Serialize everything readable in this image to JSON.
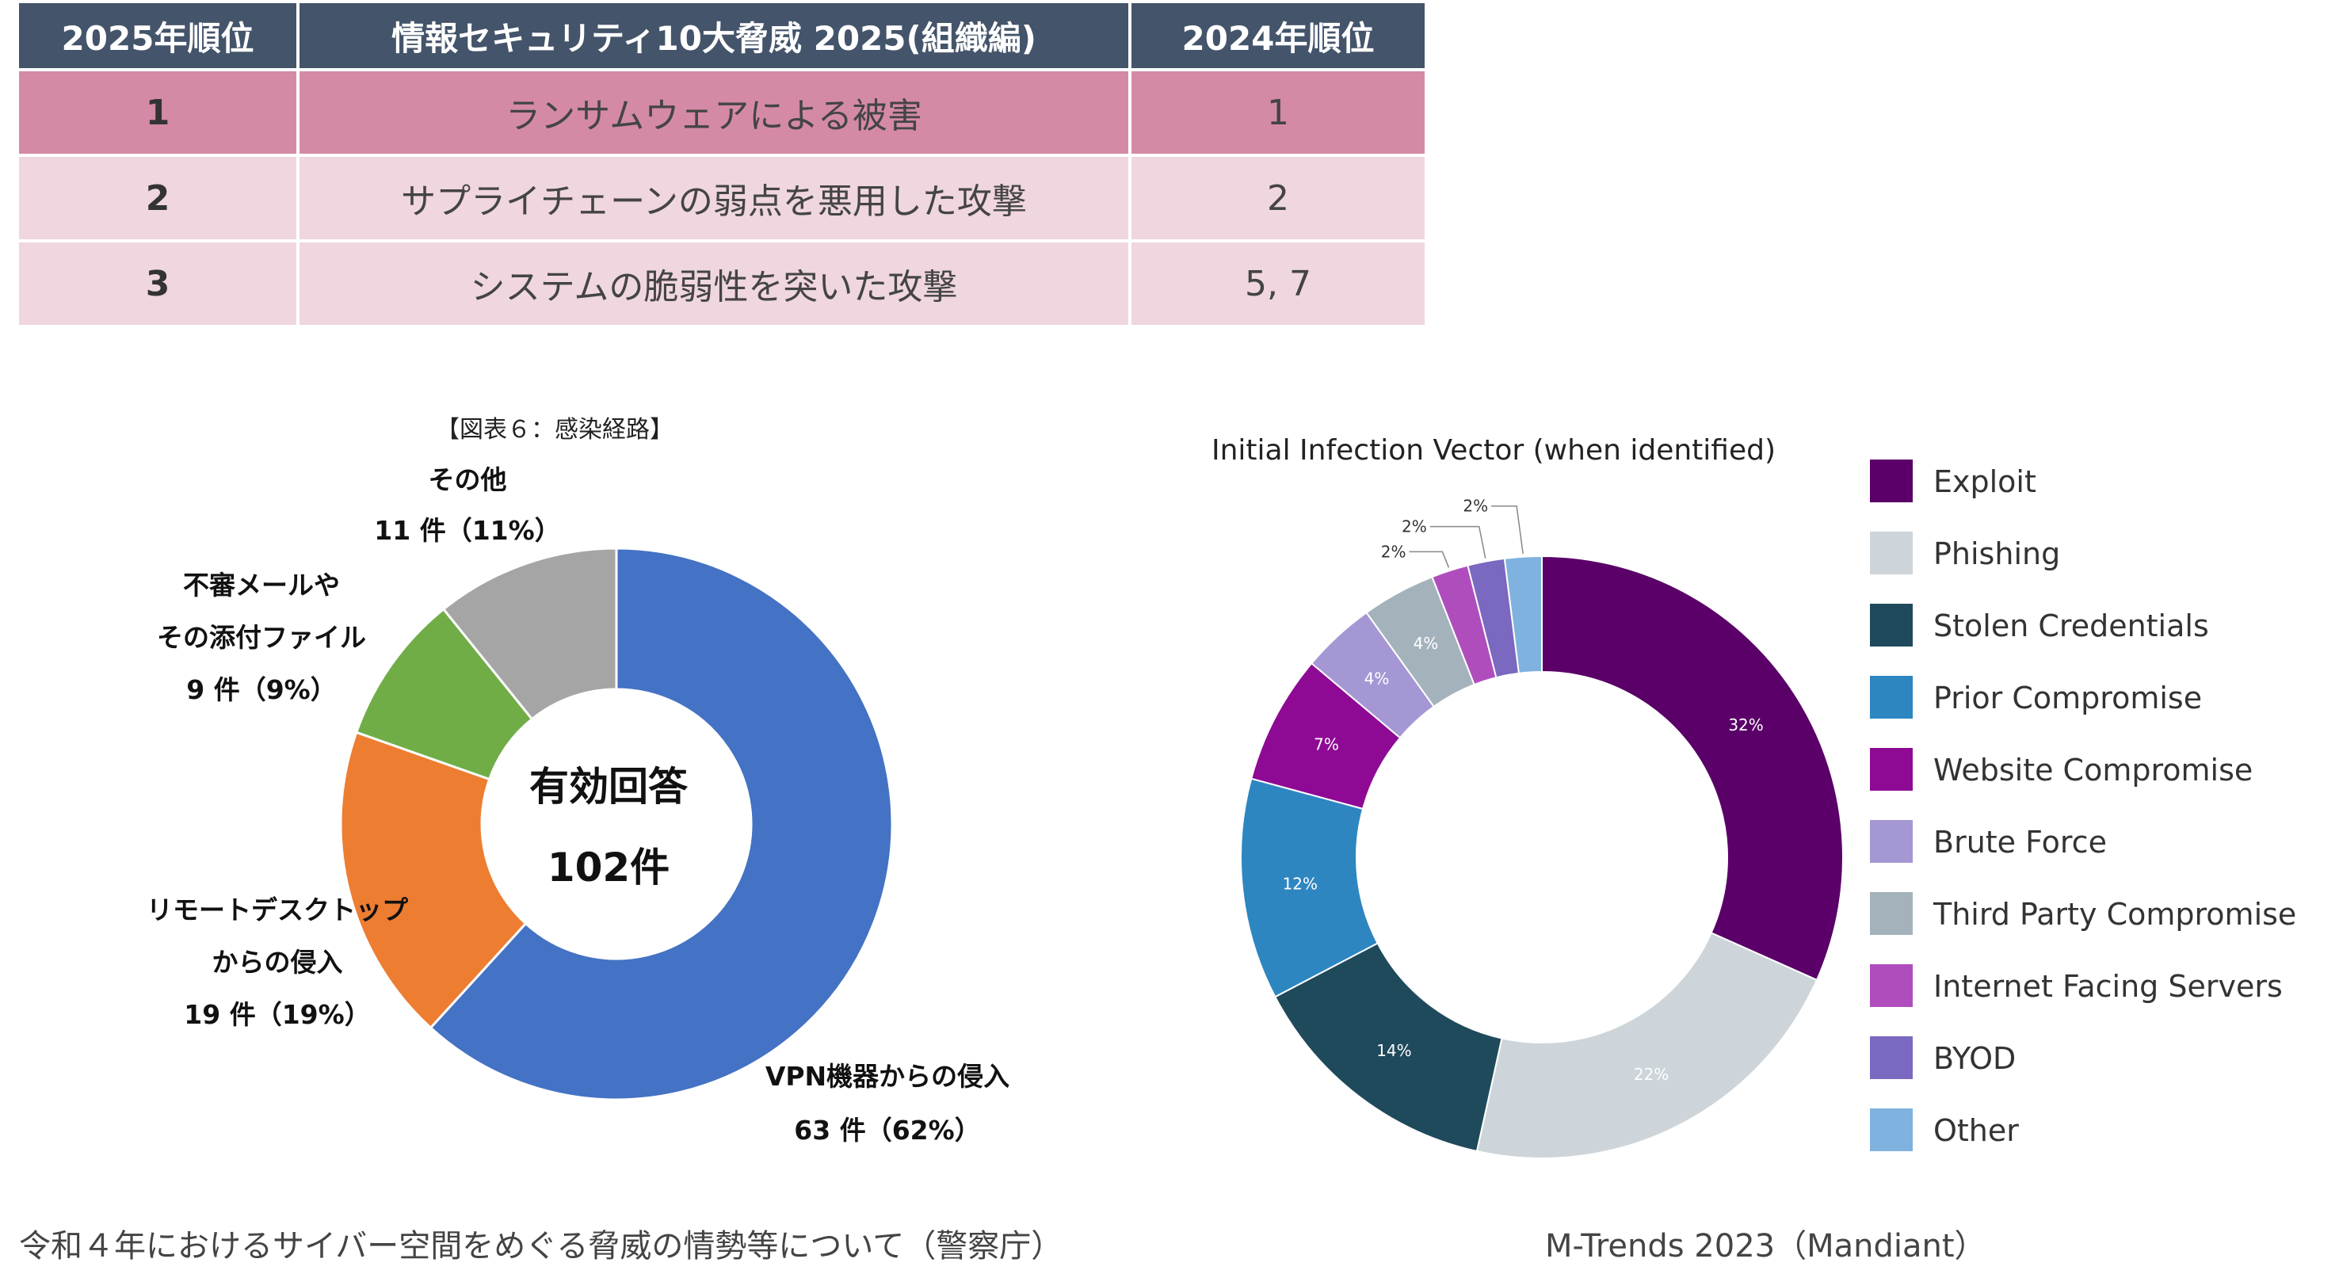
{
  "ranking_table": {
    "headers": [
      "2025年順位",
      "情報セキュリティ10大脅威 2025(組織編)",
      "2024年順位"
    ],
    "rows": [
      {
        "rank": "1",
        "threat": "ランサムウェアによる被害",
        "prev": "1"
      },
      {
        "rank": "2",
        "threat": "サプライチェーンの弱点を悪用した攻撃",
        "prev": "2"
      },
      {
        "rank": "3",
        "threat": "システムの脆弱性を突いた攻撃",
        "prev": "5, 7"
      }
    ],
    "colors": {
      "header": "#44546a",
      "highlight_row": "#d48aa6",
      "light_row": "#efd6df"
    }
  },
  "chart_data": [
    {
      "type": "pie",
      "variant": "donut",
      "title": "【図表６：感染経路】",
      "center_text": [
        "有効回答",
        "102件"
      ],
      "slices": [
        {
          "label_lines": [
            "VPN機器からの侵入",
            "63 件（62%）"
          ],
          "value": 63,
          "percent": 62,
          "color": "#4472c4"
        },
        {
          "label_lines": [
            "リモートデスクトップ",
            "からの侵入",
            "19 件（19%）"
          ],
          "value": 19,
          "percent": 19,
          "color": "#ed7d31"
        },
        {
          "label_lines": [
            "不審メールや",
            "その添付ファイル",
            "9 件（9%）"
          ],
          "value": 9,
          "percent": 9,
          "color": "#70ad47"
        },
        {
          "label_lines": [
            "その他",
            "11 件（11%）"
          ],
          "value": 11,
          "percent": 11,
          "color": "#a5a5a5"
        }
      ],
      "source": "令和４年におけるサイバー空間をめぐる脅威の情勢等について（警察庁）"
    },
    {
      "type": "pie",
      "variant": "donut",
      "title": "Initial Infection Vector (when identified)",
      "slices": [
        {
          "label": "Exploit",
          "value": 32,
          "value_label": "32%",
          "color": "#5a0068"
        },
        {
          "label": "Phishing",
          "value": 22,
          "value_label": "22%",
          "color": "#cdd5da"
        },
        {
          "label": "Stolen Credentials",
          "value": 14,
          "value_label": "14%",
          "color": "#1f4a5c"
        },
        {
          "label": "Prior Compromise",
          "value": 12,
          "value_label": "12%",
          "color": "#2e86c1"
        },
        {
          "label": "Website Compromise",
          "value": 7,
          "value_label": "7%",
          "color": "#8e0a94"
        },
        {
          "label": "Brute Force",
          "value": 4,
          "value_label": "4%",
          "color": "#a597d4"
        },
        {
          "label": "Third Party Compromise",
          "value": 4,
          "value_label": "4%",
          "color": "#a4b3bb"
        },
        {
          "label": "Internet Facing Servers",
          "value": 2,
          "value_label": "2%",
          "color": "#b04dbd"
        },
        {
          "label": "BYOD",
          "value": 2,
          "value_label": "2%",
          "color": "#7b68c0"
        },
        {
          "label": "Other",
          "value": 2,
          "value_label": "2%",
          "color": "#7fb2de"
        }
      ],
      "legend_position": "right",
      "source": "M-Trends 2023（Mandiant）"
    }
  ]
}
